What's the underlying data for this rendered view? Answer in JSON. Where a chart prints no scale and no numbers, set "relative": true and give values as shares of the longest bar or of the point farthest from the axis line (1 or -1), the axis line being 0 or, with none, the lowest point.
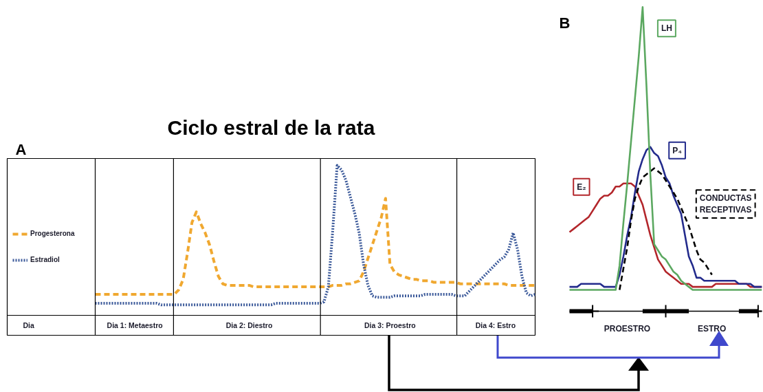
{
  "chart_data": [
    {
      "type": "line",
      "title": "Ciclo estral de la rata",
      "xlabel": "Dia",
      "annotations": [
        "A"
      ],
      "relative": true,
      "legend": "left",
      "categories": [
        null,
        null,
        null,
        null,
        null,
        null,
        null,
        null,
        null,
        null,
        null,
        null,
        null,
        null,
        null,
        null,
        null,
        null,
        null,
        null,
        null,
        null,
        null,
        null,
        null,
        null,
        null,
        null,
        null,
        "Dia 1: Metaestro",
        null,
        null,
        null,
        null,
        null,
        null,
        null,
        null,
        null,
        null,
        null,
        null,
        null,
        null,
        null,
        null,
        null,
        null,
        null,
        null,
        null,
        null,
        null,
        null,
        null,
        "Dia 2: Diestro",
        null,
        null,
        null,
        null,
        null,
        null,
        null,
        null,
        null,
        null,
        null,
        null,
        null,
        null,
        null,
        null,
        null,
        null,
        null,
        null,
        null,
        null,
        null,
        null,
        null,
        null,
        null,
        null,
        null,
        null,
        null,
        "Dia 3: Proestro",
        null,
        null,
        null,
        null,
        null,
        null,
        null,
        null,
        null,
        null,
        null,
        null,
        null,
        null,
        null,
        null,
        null,
        null,
        null,
        null,
        null,
        null,
        null,
        "Dia 4: Estro",
        null,
        null,
        null,
        null,
        null,
        null,
        null,
        null,
        null
      ],
      "series": [
        {
          "name": "Progesterona",
          "color": "#f0a830",
          "line_style": "dashed",
          "values": [
            null,
            null,
            null,
            null,
            null,
            null,
            null,
            null,
            null,
            null,
            null,
            null,
            null,
            null,
            null,
            null,
            null,
            null,
            null,
            null,
            0.14,
            0.14,
            0.14,
            0.14,
            0.14,
            0.14,
            0.14,
            0.14,
            0.14,
            0.14,
            0.14,
            0.14,
            0.14,
            0.14,
            0.14,
            0.14,
            0.14,
            0.14,
            0.14,
            0.17,
            0.24,
            0.42,
            0.62,
            0.69,
            0.61,
            0.55,
            0.47,
            0.36,
            0.26,
            0.21,
            0.2,
            0.2,
            0.2,
            0.2,
            0.2,
            0.2,
            0.19,
            0.19,
            0.19,
            0.19,
            0.19,
            0.19,
            0.19,
            0.19,
            0.19,
            0.19,
            0.19,
            0.19,
            0.19,
            0.19,
            0.19,
            0.19,
            0.19,
            0.19,
            0.2,
            0.2,
            0.2,
            0.21,
            0.21,
            0.22,
            0.23,
            0.29,
            0.38,
            0.47,
            0.56,
            0.65,
            0.78,
            0.34,
            0.29,
            0.27,
            0.26,
            0.25,
            0.24,
            0.24,
            0.23,
            0.23,
            0.23,
            0.22,
            0.22,
            0.22,
            0.22,
            0.22,
            0.22,
            0.21,
            0.21,
            0.21,
            0.21,
            0.21,
            0.21,
            0.21,
            0.21,
            0.21,
            0.21,
            0.21,
            0.2,
            0.2,
            0.2,
            0.2,
            0.2,
            0.2,
            0.2
          ]
        },
        {
          "name": "Estradiol",
          "color": "#3c5a9a",
          "line_style": "dotted",
          "values": [
            null,
            null,
            null,
            null,
            null,
            null,
            null,
            null,
            null,
            null,
            null,
            null,
            null,
            null,
            null,
            null,
            null,
            null,
            null,
            null,
            0.08,
            0.08,
            0.08,
            0.08,
            0.08,
            0.08,
            0.08,
            0.08,
            0.08,
            0.08,
            0.08,
            0.08,
            0.08,
            0.08,
            0.08,
            0.07,
            0.07,
            0.07,
            0.07,
            0.07,
            0.07,
            0.07,
            0.07,
            0.07,
            0.07,
            0.07,
            0.07,
            0.07,
            0.07,
            0.07,
            0.07,
            0.07,
            0.07,
            0.07,
            0.07,
            0.07,
            0.07,
            0.07,
            0.07,
            0.07,
            0.07,
            0.08,
            0.08,
            0.08,
            0.08,
            0.08,
            0.08,
            0.08,
            0.08,
            0.08,
            0.08,
            0.08,
            0.09,
            0.19,
            0.57,
            1,
            0.97,
            0.9,
            0.79,
            0.68,
            0.55,
            0.34,
            0.2,
            0.13,
            0.12,
            0.12,
            0.12,
            0.12,
            0.13,
            0.13,
            0.13,
            0.13,
            0.13,
            0.13,
            0.13,
            0.14,
            0.14,
            0.14,
            0.14,
            0.14,
            0.14,
            0.14,
            0.13,
            0.13,
            0.13,
            0.16,
            0.19,
            0.22,
            0.25,
            0.28,
            0.31,
            0.34,
            0.37,
            0.39,
            0.44,
            0.55,
            0.44,
            0.26,
            0.15,
            0.13,
            0.14
          ]
        }
      ]
    },
    {
      "type": "line",
      "annotations": [
        "B"
      ],
      "relative": true,
      "line_style": "solid",
      "categories": [
        null,
        null,
        null,
        null,
        null,
        null,
        null,
        null,
        null,
        null,
        null,
        null,
        null,
        null,
        null,
        "PROESTRO",
        null,
        null,
        null,
        null,
        null,
        null,
        null,
        null,
        null,
        null,
        null,
        null,
        null,
        null,
        null,
        null,
        null,
        null,
        null,
        null,
        null,
        "ESTRO",
        null,
        null,
        null,
        null,
        null,
        null,
        null,
        null,
        null,
        null,
        null,
        null,
        null
      ],
      "series": [
        {
          "name": "E₂",
          "color": "#b3262b",
          "values": [
            0.26,
            0.27,
            0.28,
            0.29,
            0.3,
            0.31,
            0.33,
            0.35,
            0.37,
            0.38,
            0.38,
            0.39,
            0.41,
            0.41,
            0.42,
            0.42,
            0.42,
            0.41,
            0.38,
            0.35,
            0.3,
            0.25,
            0.21,
            0.17,
            0.15,
            0.13,
            0.12,
            0.11,
            0.1,
            0.09,
            0.09,
            0.09,
            0.08,
            0.08,
            0.08,
            0.08,
            0.08,
            0.08,
            0.09,
            0.09,
            0.09,
            0.09,
            0.09,
            0.09,
            0.09,
            0.09,
            0.09,
            0.08,
            0.08,
            0.08,
            0.08
          ]
        },
        {
          "name": "P₄",
          "color": "#232b8c",
          "values": [
            0.08,
            0.08,
            0.08,
            0.09,
            0.09,
            0.09,
            0.09,
            0.09,
            0.09,
            0.08,
            0.08,
            0.08,
            0.08,
            0.12,
            0.18,
            0.25,
            0.31,
            0.39,
            0.46,
            0.5,
            0.53,
            0.54,
            0.52,
            0.51,
            0.48,
            0.44,
            0.42,
            0.38,
            0.35,
            0.32,
            0.25,
            0.18,
            0.15,
            0.11,
            0.11,
            0.1,
            0.1,
            0.1,
            0.1,
            0.1,
            0.1,
            0.1,
            0.1,
            0.1,
            0.09,
            0.09,
            0.09,
            0.09,
            0.08,
            0.08,
            0.08
          ]
        },
        {
          "name": "CONDUCTAS RECEPTIVAS",
          "color": "#000000",
          "line_style": "dashed",
          "values": [
            null,
            null,
            null,
            null,
            null,
            null,
            null,
            null,
            null,
            null,
            null,
            null,
            null,
            0.07,
            0.14,
            0.21,
            0.3,
            0.37,
            0.41,
            0.44,
            0.45,
            0.46,
            0.47,
            0.46,
            0.45,
            0.43,
            0.41,
            0.39,
            0.37,
            0.34,
            0.31,
            0.28,
            0.24,
            0.2,
            0.17,
            0.16,
            0.14,
            0.12,
            null,
            null,
            null,
            null,
            null,
            null,
            null,
            null,
            null,
            null,
            null,
            null,
            null
          ]
        },
        {
          "name": "LH",
          "color": "#5ba860",
          "values": [
            0.07,
            0.07,
            0.07,
            0.07,
            0.07,
            0.07,
            0.07,
            0.07,
            0.07,
            0.07,
            0.07,
            0.07,
            0.07,
            0.15,
            0.29,
            0.42,
            0.56,
            0.7,
            0.84,
            1,
            0.74,
            0.45,
            0.22,
            0.2,
            0.18,
            0.17,
            0.15,
            0.13,
            0.12,
            0.1,
            0.09,
            0.08,
            0.07,
            0.07,
            0.07,
            0.07,
            0.07,
            0.07,
            0.07,
            0.07,
            0.07,
            0.07,
            0.07,
            0.07,
            0.07,
            0.07,
            0.07,
            0.07,
            0.07,
            0.07,
            0.07
          ]
        },
        {
          "color": "#000000",
          "values": [
            0,
            0,
            0,
            0,
            0,
            0,
            0,
            null,
            null,
            null,
            null,
            null,
            null,
            null,
            null,
            null,
            null,
            null,
            null,
            0,
            0,
            0,
            0,
            0,
            0,
            0,
            0,
            0,
            0,
            0,
            0,
            0,
            null,
            null,
            null,
            null,
            null,
            null,
            null,
            null,
            null,
            null,
            null,
            null,
            0,
            0,
            0,
            0,
            0,
            0,
            null
          ]
        },
        {
          "type": "scatter",
          "marker": "cross",
          "color": "#000000",
          "values": [
            null,
            null,
            null,
            null,
            null,
            null,
            0,
            null,
            null,
            null,
            null,
            null,
            null,
            null,
            null,
            null,
            null,
            null,
            null,
            null,
            null,
            null,
            null,
            null,
            null,
            0,
            null,
            null,
            null,
            null,
            null,
            null,
            null,
            null,
            null,
            null,
            null,
            null,
            null,
            null,
            null,
            null,
            null,
            null,
            null,
            null,
            null,
            null,
            null,
            0,
            null
          ]
        }
      ]
    }
  ]
}
